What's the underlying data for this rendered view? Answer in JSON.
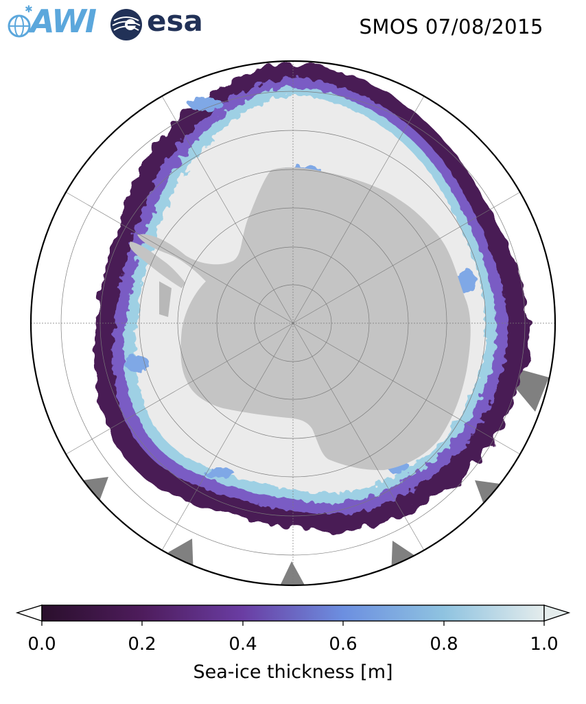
{
  "header": {
    "title": "SMOS 07/08/2015",
    "logos": [
      {
        "name": "AWI",
        "color": "#5ba7dc"
      },
      {
        "name": "esa",
        "color": "#213157"
      }
    ]
  },
  "map": {
    "projection": "south-polar-stereographic",
    "land_color": "#c4c4c4",
    "thick_ice_color": "#ebebeb",
    "no_data_color": "#808080",
    "gridlines": "dashed-gray"
  },
  "colorbar": {
    "label": "Sea-ice thickness [m]",
    "ticks": [
      "0.0",
      "0.2",
      "0.4",
      "0.6",
      "0.8",
      "1.0"
    ],
    "range": [
      0.0,
      1.0
    ],
    "extend": "both",
    "colormap": [
      "#2a0f2c",
      "#4e1c5c",
      "#6a3da3",
      "#6c8fe0",
      "#8fc3e0",
      "#e4ecec"
    ]
  }
}
